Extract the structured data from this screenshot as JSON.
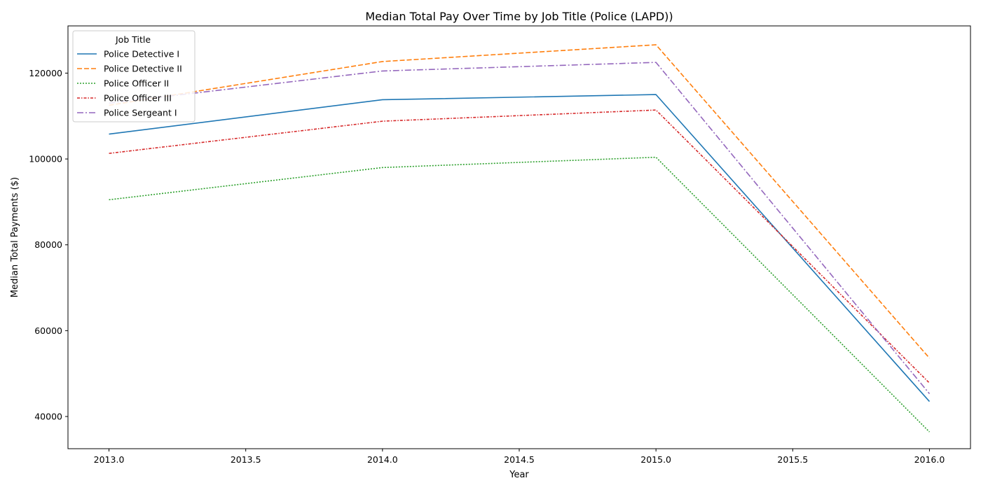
{
  "chart_data": {
    "type": "line",
    "title": "Median Total Pay Over Time by Job Title (Police (LAPD))",
    "xlabel": "Year",
    "ylabel": "Median Total Payments ($)",
    "xlim": [
      2012.85,
      2016.15
    ],
    "ylim": [
      32500,
      131000
    ],
    "x_ticks": [
      "2013.0",
      "2013.5",
      "2014.0",
      "2014.5",
      "2015.0",
      "2015.5",
      "2016.0"
    ],
    "y_ticks": [
      "40000",
      "60000",
      "80000",
      "100000",
      "120000"
    ],
    "grid": false,
    "legend": {
      "title": "Job Title",
      "placement": "top-left"
    },
    "x": [
      2013,
      2014,
      2015,
      2016
    ],
    "series": [
      {
        "name": "Police Detective I",
        "color": "#1f77b4",
        "dash": "solid",
        "values": [
          105800,
          113800,
          115000,
          43500
        ]
      },
      {
        "name": "Police Detective II",
        "color": "#ff7f0e",
        "dash": "dashed",
        "values": [
          112500,
          122700,
          126600,
          53600
        ]
      },
      {
        "name": "Police Officer II",
        "color": "#2ca02c",
        "dash": "dotted",
        "values": [
          90500,
          98000,
          100400,
          36400
        ]
      },
      {
        "name": "Police Officer III",
        "color": "#d62728",
        "dash": "dashdot-dense",
        "values": [
          101300,
          108800,
          111400,
          47800
        ]
      },
      {
        "name": "Police Sergeant I",
        "color": "#9467bd",
        "dash": "dashdot",
        "values": [
          113000,
          120500,
          122500,
          45300
        ]
      }
    ]
  }
}
